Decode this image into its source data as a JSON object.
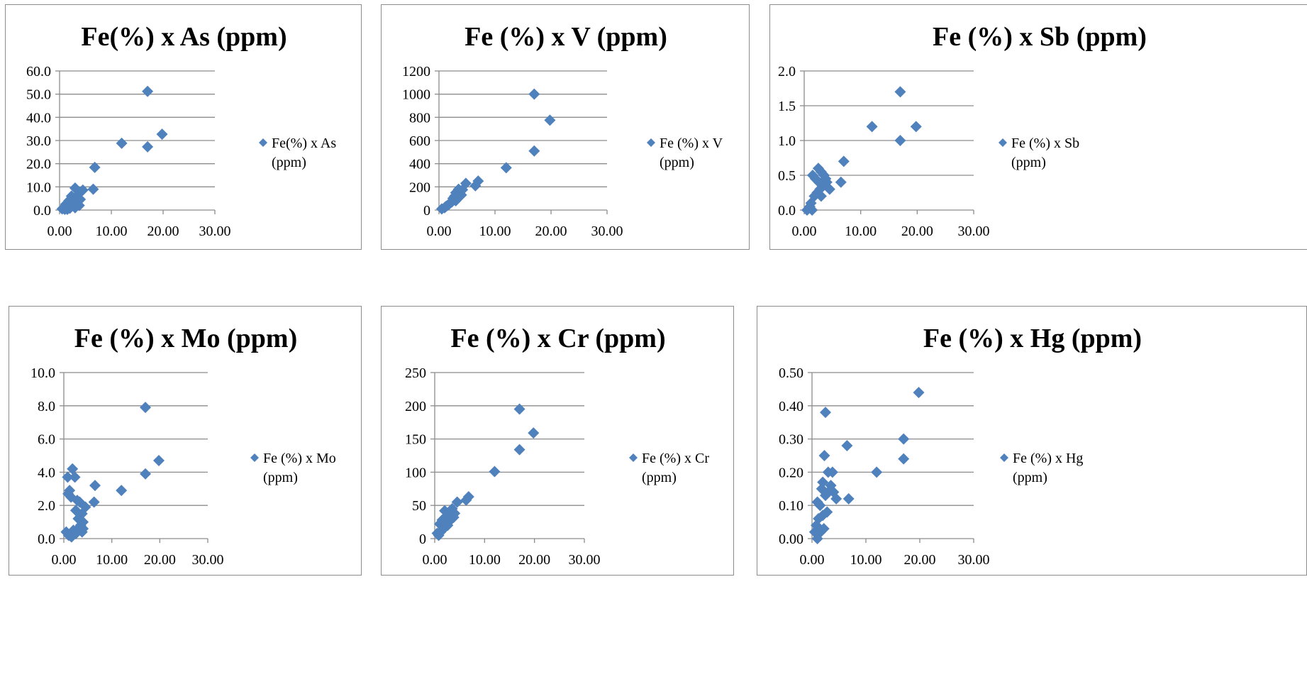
{
  "colors": {
    "marker": "#4F81BD",
    "axis": "#8c8c8c",
    "grid": "#8c8c8c",
    "frame": "#8c8c8c"
  },
  "chart_data": [
    {
      "type": "scatter",
      "title": "Fe(%) x As (ppm)",
      "legend": {
        "line1": "Fe(%) x As",
        "line2": "(ppm)",
        "position": "right"
      },
      "grid": true,
      "xlim": [
        0,
        30
      ],
      "ylim": [
        0,
        60
      ],
      "xticks": [
        "0.00",
        "10.00",
        "20.00",
        "30.00"
      ],
      "yticks": [
        "0.0",
        "10.0",
        "20.0",
        "30.0",
        "40.0",
        "50.0",
        "60.0"
      ],
      "series": [
        {
          "name": "Fe(%) x As (ppm)",
          "points": [
            [
              17.0,
              51.2
            ],
            [
              19.8,
              32.7
            ],
            [
              12.0,
              28.8
            ],
            [
              17.0,
              27.3
            ],
            [
              6.8,
              18.4
            ],
            [
              6.5,
              9.0
            ],
            [
              3.0,
              9.5
            ],
            [
              4.5,
              8.6
            ],
            [
              3.5,
              6.5
            ],
            [
              2.3,
              6.0
            ],
            [
              2.8,
              4.3
            ],
            [
              1.8,
              4.0
            ],
            [
              3.3,
              3.5
            ],
            [
              1.2,
              2.5
            ],
            [
              0.5,
              0.5
            ],
            [
              0.8,
              1.0
            ],
            [
              1.5,
              1.5
            ],
            [
              2.5,
              2.2
            ],
            [
              3.8,
              2.0
            ],
            [
              2.0,
              0.8
            ],
            [
              1.0,
              0.3
            ],
            [
              3.0,
              1.0
            ],
            [
              4.0,
              4.6
            ],
            [
              2.2,
              3.2
            ],
            [
              1.5,
              0.3
            ],
            [
              2.8,
              2.8
            ]
          ]
        }
      ]
    },
    {
      "type": "scatter",
      "title": "Fe (%) x V (ppm)",
      "legend": {
        "line1": "Fe (%) x V",
        "line2": "(ppm)",
        "position": "right"
      },
      "grid": true,
      "xlim": [
        0,
        30
      ],
      "ylim": [
        0,
        1200
      ],
      "xticks": [
        "0.00",
        "10.00",
        "20.00",
        "30.00"
      ],
      "yticks": [
        "0",
        "200",
        "400",
        "600",
        "800",
        "1000",
        "1200"
      ],
      "series": [
        {
          "name": "Fe (%) x V (ppm)",
          "points": [
            [
              17.0,
              1000
            ],
            [
              19.8,
              775
            ],
            [
              17.0,
              510
            ],
            [
              12.0,
              365
            ],
            [
              7.0,
              250
            ],
            [
              6.5,
              210
            ],
            [
              4.8,
              230
            ],
            [
              3.5,
              180
            ],
            [
              3.0,
              150
            ],
            [
              4.0,
              130
            ],
            [
              2.5,
              100
            ],
            [
              3.0,
              80
            ],
            [
              2.0,
              60
            ],
            [
              1.5,
              40
            ],
            [
              1.0,
              20
            ],
            [
              0.5,
              10
            ],
            [
              2.8,
              120
            ],
            [
              3.8,
              160
            ],
            [
              2.3,
              70
            ],
            [
              1.8,
              50
            ],
            [
              1.2,
              30
            ],
            [
              3.3,
              100
            ],
            [
              4.2,
              175
            ],
            [
              2.6,
              90
            ]
          ]
        }
      ]
    },
    {
      "type": "scatter",
      "title": "Fe (%) x Sb (ppm)",
      "legend": {
        "line1": "Fe (%) x Sb",
        "line2": "(ppm)",
        "position": "right"
      },
      "grid": true,
      "xlim": [
        0,
        30
      ],
      "ylim": [
        0,
        2
      ],
      "xticks": [
        "0.00",
        "10.00",
        "20.00",
        "30.00"
      ],
      "yticks": [
        "0.0",
        "0.5",
        "1.0",
        "1.5",
        "2.0"
      ],
      "series": [
        {
          "name": "Fe (%) x Sb (ppm)",
          "points": [
            [
              17.0,
              1.7
            ],
            [
              12.0,
              1.2
            ],
            [
              19.8,
              1.2
            ],
            [
              17.0,
              1.0
            ],
            [
              7.0,
              0.7
            ],
            [
              6.5,
              0.4
            ],
            [
              2.5,
              0.6
            ],
            [
              3.0,
              0.55
            ],
            [
              3.5,
              0.5
            ],
            [
              1.5,
              0.5
            ],
            [
              2.0,
              0.45
            ],
            [
              4.0,
              0.4
            ],
            [
              3.2,
              0.35
            ],
            [
              2.8,
              0.3
            ],
            [
              2.3,
              0.25
            ],
            [
              1.8,
              0.2
            ],
            [
              1.2,
              0.1
            ],
            [
              0.5,
              0.0
            ],
            [
              1.0,
              0.05
            ],
            [
              4.5,
              0.3
            ],
            [
              2.6,
              0.4
            ],
            [
              3.8,
              0.45
            ],
            [
              1.4,
              0.0
            ],
            [
              3.0,
              0.2
            ]
          ]
        }
      ]
    },
    {
      "type": "scatter",
      "title": "Fe (%) x Mo (ppm)",
      "legend": {
        "line1": "Fe (%) x Mo",
        "line2": "(ppm)",
        "position": "right"
      },
      "grid": true,
      "xlim": [
        0,
        30
      ],
      "ylim": [
        0,
        10
      ],
      "xticks": [
        "0.00",
        "10.00",
        "20.00",
        "30.00"
      ],
      "yticks": [
        "0.0",
        "2.0",
        "4.0",
        "6.0",
        "8.0",
        "10.0"
      ],
      "series": [
        {
          "name": "Fe (%) x Mo (ppm)",
          "points": [
            [
              17.0,
              7.9
            ],
            [
              19.8,
              4.7
            ],
            [
              1.8,
              4.2
            ],
            [
              17.0,
              3.9
            ],
            [
              0.8,
              3.7
            ],
            [
              2.3,
              3.7
            ],
            [
              6.5,
              3.2
            ],
            [
              12.0,
              2.9
            ],
            [
              1.2,
              2.9
            ],
            [
              0.9,
              2.7
            ],
            [
              1.5,
              2.5
            ],
            [
              2.8,
              2.3
            ],
            [
              3.3,
              2.2
            ],
            [
              6.3,
              2.2
            ],
            [
              4.5,
              1.9
            ],
            [
              2.5,
              1.7
            ],
            [
              3.8,
              1.5
            ],
            [
              3.0,
              1.2
            ],
            [
              4.0,
              1.0
            ],
            [
              3.5,
              0.8
            ],
            [
              2.0,
              0.5
            ],
            [
              0.5,
              0.4
            ],
            [
              1.0,
              0.2
            ],
            [
              2.5,
              0.3
            ],
            [
              4.0,
              0.6
            ],
            [
              1.6,
              0.1
            ],
            [
              3.0,
              0.6
            ],
            [
              3.8,
              0.4
            ]
          ]
        }
      ]
    },
    {
      "type": "scatter",
      "title": "Fe (%) x Cr (ppm)",
      "legend": {
        "line1": "Fe (%) x Cr",
        "line2": "(ppm)",
        "position": "right"
      },
      "grid": true,
      "xlim": [
        0,
        30
      ],
      "ylim": [
        0,
        250
      ],
      "xticks": [
        "0.00",
        "10.00",
        "20.00",
        "30.00"
      ],
      "yticks": [
        "0",
        "50",
        "100",
        "150",
        "200",
        "250"
      ],
      "series": [
        {
          "name": "Fe (%) x Cr (ppm)",
          "points": [
            [
              17.0,
              195
            ],
            [
              19.8,
              159
            ],
            [
              17.0,
              134
            ],
            [
              12.0,
              101
            ],
            [
              6.8,
              63
            ],
            [
              6.3,
              58
            ],
            [
              4.5,
              55
            ],
            [
              3.5,
              45
            ],
            [
              2.0,
              42
            ],
            [
              3.0,
              40
            ],
            [
              2.5,
              35
            ],
            [
              3.8,
              32
            ],
            [
              1.5,
              28
            ],
            [
              2.8,
              25
            ],
            [
              1.0,
              22
            ],
            [
              2.2,
              18
            ],
            [
              1.8,
              15
            ],
            [
              0.5,
              8
            ],
            [
              1.2,
              10
            ],
            [
              3.2,
              30
            ],
            [
              4.0,
              38
            ],
            [
              2.6,
              20
            ],
            [
              0.8,
              5
            ]
          ]
        }
      ]
    },
    {
      "type": "scatter",
      "title": "Fe (%) x Hg (ppm)",
      "legend": {
        "line1": "Fe (%) x Hg",
        "line2": "(ppm)",
        "position": "right"
      },
      "grid": true,
      "xlim": [
        0,
        30
      ],
      "ylim": [
        0,
        0.5
      ],
      "xticks": [
        "0.00",
        "10.00",
        "20.00",
        "30.00"
      ],
      "yticks": [
        "0.00",
        "0.10",
        "0.20",
        "0.30",
        "0.40",
        "0.50"
      ],
      "series": [
        {
          "name": "Fe (%) x Hg (ppm)",
          "points": [
            [
              19.8,
              0.44
            ],
            [
              2.5,
              0.38
            ],
            [
              17.0,
              0.3
            ],
            [
              6.5,
              0.28
            ],
            [
              2.3,
              0.25
            ],
            [
              17.0,
              0.24
            ],
            [
              3.0,
              0.2
            ],
            [
              12.0,
              0.2
            ],
            [
              3.8,
              0.2
            ],
            [
              2.0,
              0.17
            ],
            [
              3.5,
              0.16
            ],
            [
              1.8,
              0.15
            ],
            [
              3.0,
              0.14
            ],
            [
              4.0,
              0.14
            ],
            [
              2.5,
              0.13
            ],
            [
              6.8,
              0.12
            ],
            [
              4.5,
              0.12
            ],
            [
              1.0,
              0.11
            ],
            [
              1.5,
              0.1
            ],
            [
              2.8,
              0.08
            ],
            [
              2.0,
              0.07
            ],
            [
              1.2,
              0.06
            ],
            [
              0.8,
              0.04
            ],
            [
              0.5,
              0.02
            ],
            [
              1.0,
              0.0
            ],
            [
              1.6,
              0.02
            ],
            [
              2.2,
              0.03
            ]
          ]
        }
      ]
    }
  ]
}
